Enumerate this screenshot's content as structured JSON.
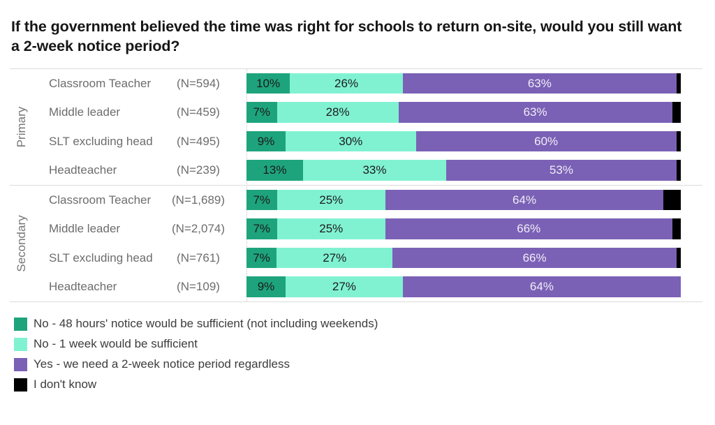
{
  "title": "If the government believed the time was right for schools to return on-site, would you still want a 2-week notice period?",
  "chart_data": {
    "type": "bar",
    "stacked": true,
    "orientation": "horizontal",
    "unit": "%",
    "x_range": [
      0,
      100
    ],
    "grid": false,
    "series": [
      {
        "name": "No - 48 hours' notice would be sufficient (not including weekends)",
        "color": "#1ea47c",
        "label_color": "#1b1b1b"
      },
      {
        "name": "No - 1 week would be sufficient",
        "color": "#80f2d2",
        "label_color": "#1b1b1b"
      },
      {
        "name": "Yes - we need a 2-week notice period regardless",
        "color": "#7a61b5",
        "label_color": "#f1ecf8"
      },
      {
        "name": "I don't know",
        "color": "#000000",
        "label_color": "#ffffff"
      }
    ],
    "groups": [
      {
        "name": "Primary",
        "rows": [
          {
            "label": "Classroom Teacher",
            "n": "(N=594)",
            "values": [
              10,
              26,
              63,
              1
            ],
            "display": [
              "10%",
              "26%",
              "63%",
              ""
            ]
          },
          {
            "label": "Middle leader",
            "n": "(N=459)",
            "values": [
              7,
              28,
              63,
              2
            ],
            "display": [
              "7%",
              "28%",
              "63%",
              ""
            ]
          },
          {
            "label": "SLT excluding head",
            "n": "(N=495)",
            "values": [
              9,
              30,
              60,
              1
            ],
            "display": [
              "9%",
              "30%",
              "60%",
              ""
            ]
          },
          {
            "label": "Headteacher",
            "n": "(N=239)",
            "values": [
              13,
              33,
              53,
              1
            ],
            "display": [
              "13%",
              "33%",
              "53%",
              ""
            ]
          }
        ]
      },
      {
        "name": "Secondary",
        "rows": [
          {
            "label": "Classroom Teacher",
            "n": "(N=1,689)",
            "values": [
              7,
              25,
              64,
              4
            ],
            "display": [
              "7%",
              "25%",
              "64%",
              ""
            ]
          },
          {
            "label": "Middle leader",
            "n": "(N=2,074)",
            "values": [
              7,
              25,
              66,
              2
            ],
            "display": [
              "7%",
              "25%",
              "66%",
              ""
            ]
          },
          {
            "label": "SLT excluding head",
            "n": "(N=761)",
            "values": [
              7,
              27,
              66,
              1
            ],
            "display": [
              "7%",
              "27%",
              "66%",
              ""
            ]
          },
          {
            "label": "Headteacher",
            "n": "(N=109)",
            "values": [
              9,
              27,
              64,
              0
            ],
            "display": [
              "9%",
              "27%",
              "64%",
              ""
            ]
          }
        ]
      }
    ]
  },
  "legend": {
    "items": [
      {
        "label": "No - 48 hours' notice would be sufficient (not including weekends)",
        "color": "#1ea47c"
      },
      {
        "label": "No - 1 week would be sufficient",
        "color": "#80f2d2"
      },
      {
        "label": "Yes - we need a 2-week notice period regardless",
        "color": "#7a61b5"
      },
      {
        "label": "I don't know",
        "color": "#000000"
      }
    ]
  }
}
